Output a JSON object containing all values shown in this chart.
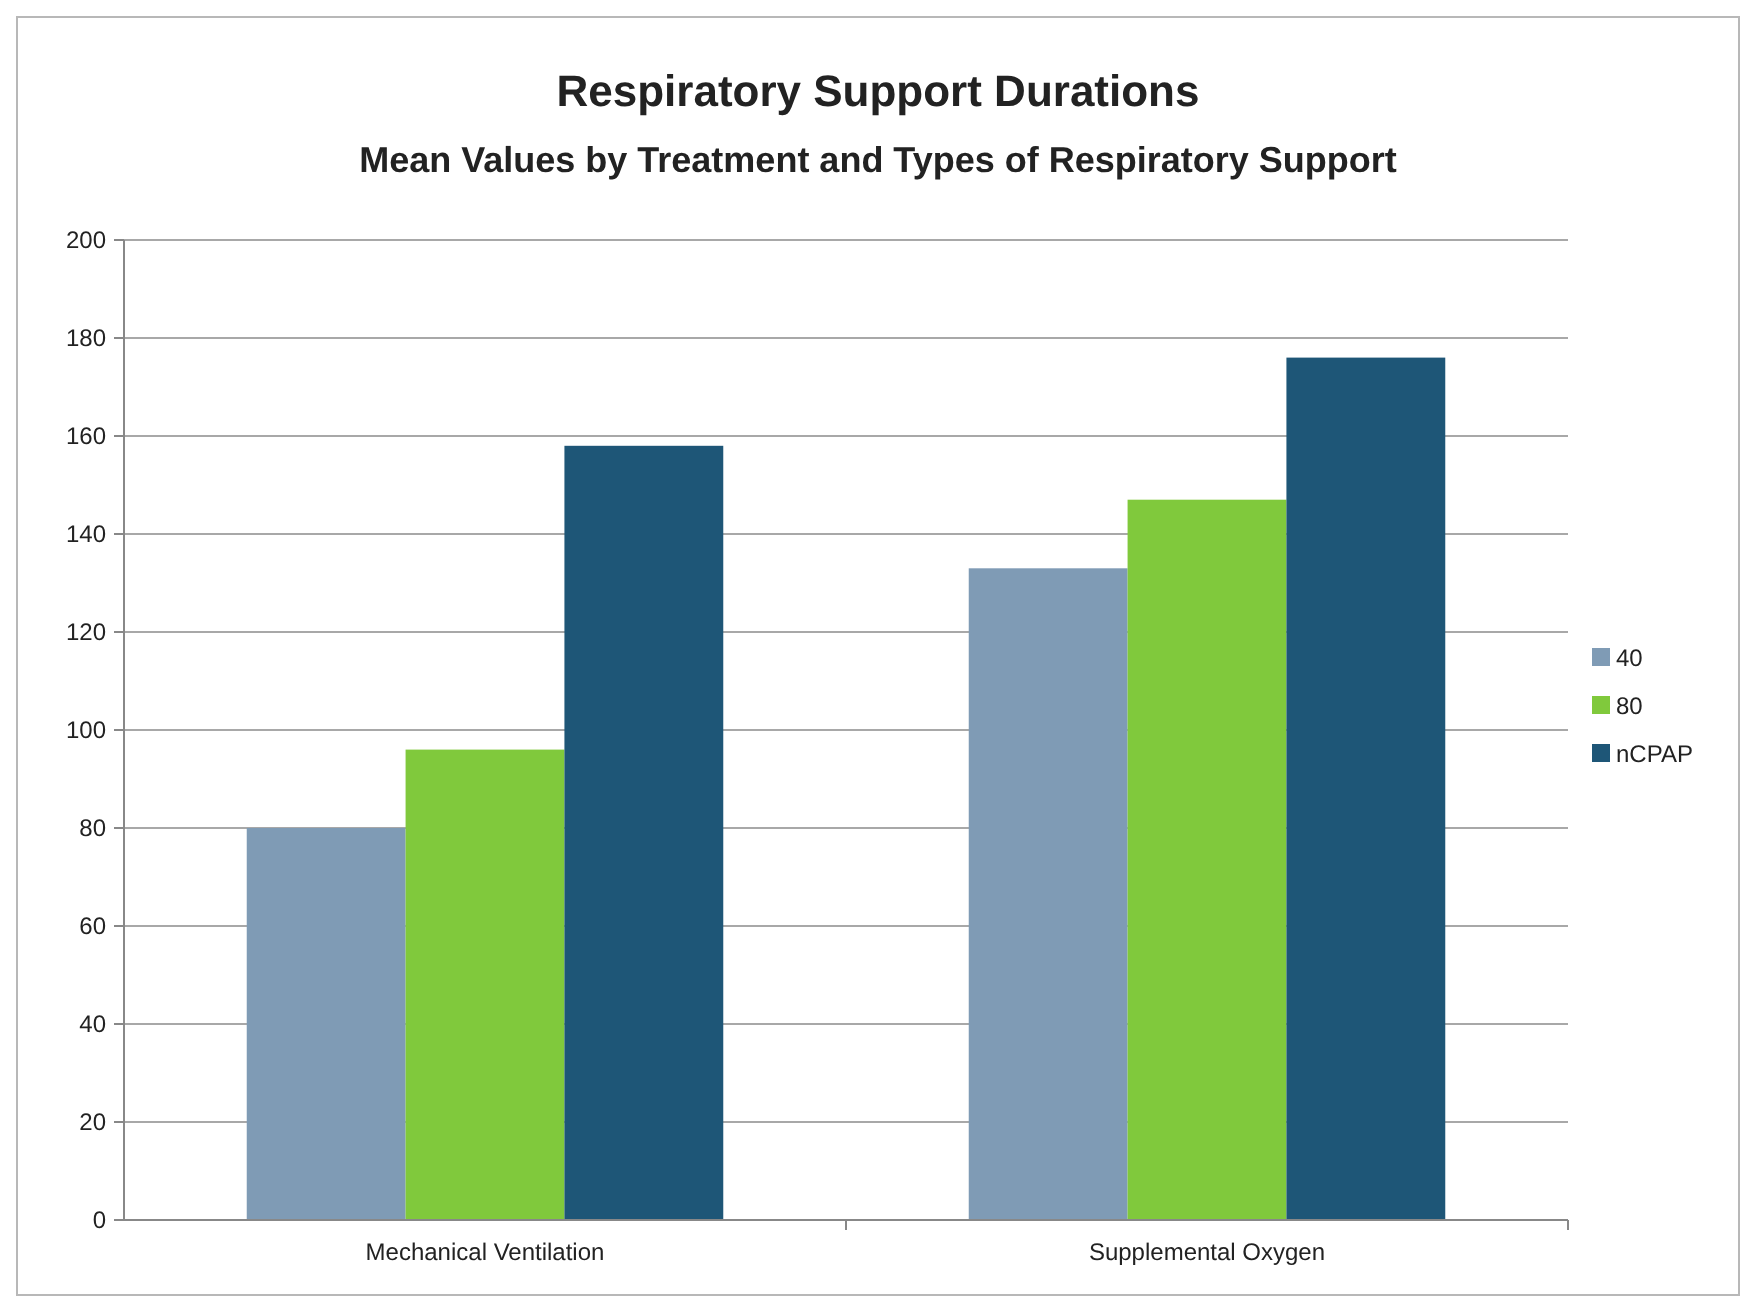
{
  "chart_data": {
    "type": "bar",
    "title": "Respiratory Support Durations",
    "subtitle": "Mean Values by Treatment and Types of Respiratory Support",
    "categories": [
      "Mechanical Ventilation",
      "Supplemental Oxygen"
    ],
    "series": [
      {
        "name": "40",
        "color": "#7f9bb5",
        "values": [
          80,
          133
        ]
      },
      {
        "name": "80",
        "color": "#80c93c",
        "values": [
          96,
          147
        ]
      },
      {
        "name": "nCPAP",
        "color": "#1e5677",
        "values": [
          158,
          176
        ]
      }
    ],
    "ylim": [
      0,
      200
    ],
    "yticks": [
      0,
      20,
      40,
      60,
      80,
      100,
      120,
      140,
      160,
      180,
      200
    ],
    "grid": "y",
    "legend": "right"
  }
}
